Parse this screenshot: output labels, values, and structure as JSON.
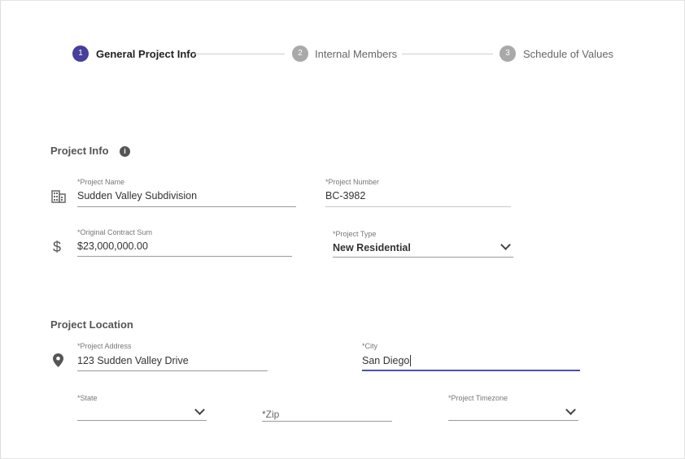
{
  "stepper": {
    "steps": [
      {
        "number": "1",
        "label": "General Project Info",
        "active": true
      },
      {
        "number": "2",
        "label": "Internal Members",
        "active": false
      },
      {
        "number": "3",
        "label": "Schedule of Values",
        "active": false
      }
    ],
    "active_color": "#463f9b",
    "inactive_color": "#a9a9a9"
  },
  "project_info": {
    "title": "Project Info",
    "info_icon": "info-icon",
    "project_name": {
      "label": "*Project Name",
      "value": "Sudden Valley Subdivision",
      "icon": "building-icon"
    },
    "project_number": {
      "label": "*Project Number",
      "value": "BC-3982"
    },
    "contract_sum": {
      "label": "*Original Contract Sum",
      "value": "$23,000,000.00",
      "icon": "dollar-icon"
    },
    "project_type": {
      "label": "*Project Type",
      "value": "New Residential"
    }
  },
  "project_location": {
    "title": "Project Location",
    "address": {
      "label": "*Project Address",
      "value": "123 Sudden Valley Drive",
      "icon": "location-pin-icon"
    },
    "city": {
      "label": "*City",
      "value": "San Diego",
      "focused": true
    },
    "state": {
      "label": "*State",
      "value": ""
    },
    "zip": {
      "placeholder": "*Zip",
      "value": ""
    },
    "timezone": {
      "label": "*Project Timezone",
      "value": ""
    }
  },
  "focus_color": "#4b4fb5"
}
